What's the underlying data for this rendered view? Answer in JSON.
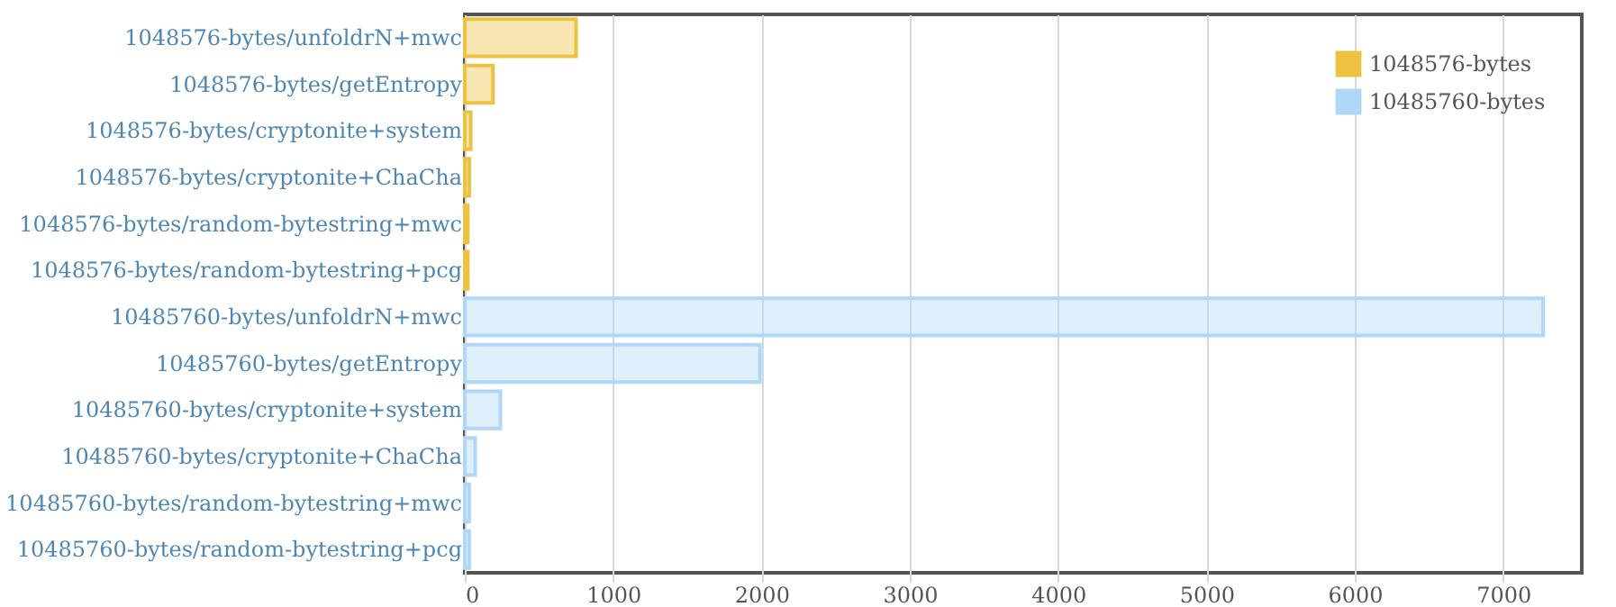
{
  "chart_data": {
    "type": "bar",
    "orientation": "horizontal",
    "categories": [
      "1048576-bytes/unfoldrN+mwc",
      "1048576-bytes/getEntropy",
      "1048576-bytes/cryptonite+system",
      "1048576-bytes/cryptonite+ChaCha",
      "1048576-bytes/random-bytestring+mwc",
      "1048576-bytes/random-bytestring+pcg",
      "10485760-bytes/unfoldrN+mwc",
      "10485760-bytes/getEntropy",
      "10485760-bytes/cryptonite+system",
      "10485760-bytes/cryptonite+ChaCha",
      "10485760-bytes/random-bytestring+mwc",
      "10485760-bytes/random-bytestring+pcg"
    ],
    "series": [
      {
        "name": "1048576-bytes",
        "color": "#edc240",
        "values": [
          750,
          190,
          40,
          30,
          20,
          20,
          null,
          null,
          null,
          null,
          null,
          null
        ]
      },
      {
        "name": "10485760-bytes",
        "color": "#afd8f8",
        "values": [
          null,
          null,
          null,
          null,
          null,
          null,
          7270,
          1990,
          240,
          70,
          30,
          30
        ]
      }
    ],
    "xlim": [
      0,
      7530
    ],
    "xticks": [
      0,
      1000,
      2000,
      3000,
      4000,
      5000,
      6000,
      7000
    ],
    "grid": "x",
    "legend": "top right"
  }
}
